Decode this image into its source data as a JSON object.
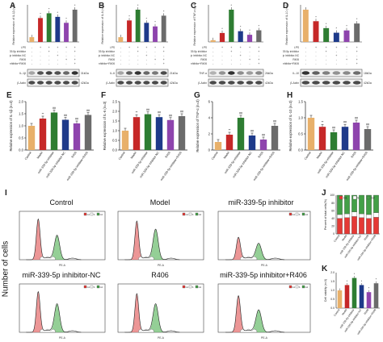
{
  "figure": {
    "panel_labels": [
      "A",
      "B",
      "C",
      "D",
      "E",
      "F",
      "G",
      "H",
      "I",
      "J",
      "K"
    ],
    "colors": {
      "control": "#e8b06a",
      "model": "#c62828",
      "inhibitor": "#2e7d32",
      "inhibitor_nc": "#1e3a8a",
      "r406": "#8e44ad",
      "combo": "#6b6b6b",
      "g1": "#e53935",
      "s": "#ffffff",
      "g2": "#43a047"
    },
    "western_rows": [
      {
        "label": "LPS",
        "vals": [
          "-",
          "+",
          "+",
          "+",
          "+",
          "+"
        ]
      },
      {
        "label": "miR-339-5p inhibitor",
        "vals": [
          "-",
          "-",
          "+",
          "-",
          "-",
          "+"
        ]
      },
      {
        "label": "miR-339-5p inhibitor-NC",
        "vals": [
          "-",
          "-",
          "-",
          "+",
          "-",
          "-"
        ]
      },
      {
        "label": "R406",
        "vals": [
          "-",
          "-",
          "-",
          "-",
          "+",
          "+"
        ]
      },
      {
        "label": "miR-339-5p inhibitor+R406",
        "vals": [
          "-",
          "-",
          "-",
          "-",
          "-",
          "+"
        ]
      }
    ],
    "blot_labels": {
      "A": [
        "IL-1β",
        "β-Actin"
      ],
      "B": [
        "IL-6",
        "β-Actin"
      ],
      "C": [
        "TNF-α",
        "β-Actin"
      ],
      "D": [
        "IL-10",
        "β-Actin"
      ]
    },
    "blot_kda": {
      "A": [
        "31kDa",
        "42kDa"
      ],
      "B": [
        "21kDa",
        "42kDa"
      ],
      "C": [
        "26kDa",
        "42kDa"
      ],
      "D": [
        "18kDa",
        "42kDa"
      ]
    },
    "flow_titles": [
      "Control",
      "Model",
      "miR-339-5p inhibitor",
      "miR-339-5p inhibitor-NC",
      "R406",
      "miR-339-5p inhibitor+R406"
    ],
    "flow_y_label": "Number of cells",
    "flow_x_label": "PE-A",
    "legend": [
      "G1",
      "S",
      "G2"
    ]
  },
  "chart_data": [
    {
      "panel": "A",
      "type": "bar",
      "ylabel": "Relative expression of IL-1β (n=3)",
      "values": [
        0.2,
        1.0,
        1.2,
        1.05,
        0.8,
        1.35
      ]
    },
    {
      "panel": "B",
      "type": "bar",
      "ylabel": "Relative expression of IL-6 (n=3)",
      "values": [
        0.2,
        0.9,
        1.35,
        0.8,
        0.65,
        1.1
      ]
    },
    {
      "panel": "C",
      "type": "bar",
      "ylabel": "Relative expression of TNF-α (n=3)",
      "values": [
        0.1,
        0.5,
        1.8,
        0.6,
        0.4,
        0.65
      ]
    },
    {
      "panel": "D",
      "type": "bar",
      "ylabel": "Relative expression of IL-10 (n=3)",
      "values": [
        1.4,
        0.9,
        0.6,
        0.4,
        0.5,
        0.8
      ]
    },
    {
      "panel": "E",
      "type": "bar",
      "ylabel": "Relative expression of IL-1β (n=3)",
      "values": [
        1.0,
        1.3,
        1.55,
        1.25,
        1.1,
        1.45
      ],
      "ylim": [
        0,
        2.0
      ],
      "yticks": [
        "0.0",
        "0.5",
        "1.0",
        "1.5",
        "2.0"
      ],
      "categories": [
        "Control",
        "Model",
        "miR-339-5p inhibitor",
        "miR-339-5p inhibitor-NC",
        "R406",
        "miR-339-5p inhibitor+R406"
      ]
    },
    {
      "panel": "F",
      "type": "bar",
      "ylabel": "Relative expression of IL-6 (n=3)",
      "values": [
        1.0,
        1.7,
        1.85,
        1.7,
        1.55,
        1.75
      ],
      "ylim": [
        0,
        2.5
      ],
      "yticks": [
        "0.0",
        "0.5",
        "1.0",
        "1.5",
        "2.0",
        "2.5"
      ],
      "categories": [
        "Control",
        "Model",
        "miR-339-5p inhibitor",
        "miR-339-5p inhibitor-NC",
        "R406",
        "miR-339-5p inhibitor+R406"
      ]
    },
    {
      "panel": "G",
      "type": "bar",
      "ylabel": "Relative expression of TNF-α (n=3)",
      "values": [
        1.0,
        1.9,
        4.0,
        1.8,
        1.3,
        3.0
      ],
      "ylim": [
        0,
        6
      ],
      "yticks": [
        "0",
        "2",
        "4",
        "6"
      ],
      "categories": [
        "Control",
        "Model",
        "miR-339-5p inhibitor",
        "miR-339-5p inhibitor-NC",
        "R406",
        "miR-339-5p inhibitor+R406"
      ]
    },
    {
      "panel": "H",
      "type": "bar",
      "ylabel": "Relative expression of IL-10 (n=3)",
      "values": [
        1.0,
        0.72,
        0.55,
        0.72,
        0.85,
        0.65
      ],
      "ylim": [
        0,
        1.5
      ],
      "yticks": [
        "0.0",
        "0.5",
        "1.0",
        "1.5"
      ],
      "categories": [
        "Control",
        "Model",
        "miR-339-5p inhibitor",
        "miR-339-5p inhibitor-NC",
        "R406",
        "miR-339-5p inhibitor+R406"
      ]
    },
    {
      "panel": "J",
      "type": "stacked-bar",
      "ylabel": "Percent of total cells(%)",
      "yticks": [
        "0",
        "20",
        "40",
        "60",
        "80",
        "100"
      ],
      "categories": [
        "Control",
        "Model",
        "miR-339-5p inhibitor",
        "miR-339-5p inhibitor-NC",
        "R406",
        "miR-339-5p inhibitor+R406"
      ],
      "series": [
        {
          "name": "G1",
          "values": [
            40,
            42,
            45,
            42,
            40,
            43
          ]
        },
        {
          "name": "S",
          "values": [
            10,
            10,
            12,
            10,
            10,
            12
          ]
        },
        {
          "name": "G2",
          "values": [
            50,
            48,
            43,
            48,
            50,
            45
          ]
        }
      ]
    },
    {
      "panel": "K",
      "type": "bar",
      "ylabel": "Cell viability (n=3)",
      "values": [
        1.0,
        1.3,
        1.7,
        1.3,
        0.9,
        1.4
      ],
      "ylim": [
        0,
        2.0
      ],
      "yticks": [
        "0.0",
        "0.5",
        "1.0",
        "1.5",
        "2.0"
      ],
      "categories": [
        "Control",
        "Model",
        "miR-339-5p inhibitor",
        "miR-339-5p inhibitor-NC",
        "R406",
        "miR-339-5p inhibitor+R406"
      ]
    }
  ]
}
